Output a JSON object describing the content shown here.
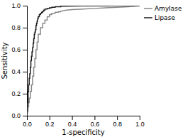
{
  "chart_data": {
    "type": "line",
    "xlabel": "1-specificity",
    "ylabel": "Sensitivity",
    "xlim": [
      0.0,
      1.0
    ],
    "ylim": [
      0.0,
      1.0
    ],
    "xticks": [
      {
        "value": 0.0,
        "label": "0.0"
      },
      0.2,
      0.4,
      0.6,
      0.8,
      {
        "value": 1.0,
        "label": "1.0"
      }
    ],
    "yticks": [
      {
        "value": 0.0,
        "label": "0.0"
      },
      0.2,
      0.4,
      0.6,
      0.8,
      {
        "value": 1.0,
        "label": "1.0"
      }
    ],
    "grid": false,
    "legend": "right",
    "series": [
      {
        "name": "Amylase",
        "color": "#888888",
        "x": [
          0.0,
          0.0,
          0.005,
          0.005,
          0.01,
          0.01,
          0.015,
          0.015,
          0.02,
          0.02,
          0.03,
          0.03,
          0.04,
          0.04,
          0.05,
          0.05,
          0.06,
          0.06,
          0.07,
          0.07,
          0.08,
          0.08,
          0.09,
          0.09,
          0.1,
          0.1,
          0.12,
          0.12,
          0.14,
          0.14,
          0.16,
          0.16,
          0.18,
          0.18,
          0.2,
          0.2,
          0.22,
          0.22,
          0.25,
          0.25,
          0.28,
          0.28,
          0.3,
          0.3,
          0.35,
          0.4,
          0.5,
          0.6,
          0.7,
          0.8,
          0.9,
          1.0
        ],
        "values": [
          0.0,
          0.02,
          0.02,
          0.04,
          0.04,
          0.08,
          0.08,
          0.12,
          0.12,
          0.16,
          0.16,
          0.22,
          0.22,
          0.28,
          0.28,
          0.36,
          0.36,
          0.44,
          0.44,
          0.52,
          0.52,
          0.6,
          0.6,
          0.67,
          0.67,
          0.74,
          0.74,
          0.8,
          0.8,
          0.84,
          0.84,
          0.87,
          0.87,
          0.9,
          0.9,
          0.92,
          0.92,
          0.93,
          0.93,
          0.94,
          0.94,
          0.945,
          0.945,
          0.95,
          0.96,
          0.965,
          0.97,
          0.975,
          0.98,
          0.985,
          0.99,
          1.0
        ]
      },
      {
        "name": "Lipase",
        "color": "#1a1a1a",
        "x": [
          0.0,
          0.0,
          0.0,
          0.005,
          0.005,
          0.01,
          0.01,
          0.01,
          0.015,
          0.015,
          0.02,
          0.02,
          0.025,
          0.025,
          0.03,
          0.03,
          0.035,
          0.035,
          0.04,
          0.04,
          0.045,
          0.045,
          0.05,
          0.05,
          0.055,
          0.055,
          0.06,
          0.06,
          0.065,
          0.065,
          0.07,
          0.07,
          0.075,
          0.075,
          0.08,
          0.08,
          0.085,
          0.085,
          0.09,
          0.09,
          0.095,
          0.095,
          0.1,
          0.1,
          0.11,
          0.11,
          0.12,
          0.12,
          0.13,
          0.13,
          0.14,
          0.14,
          0.15,
          0.15,
          0.16,
          0.16,
          0.18,
          0.18,
          0.2,
          0.2,
          0.22,
          0.22,
          0.25,
          0.25,
          0.3,
          0.3,
          0.4,
          0.5,
          0.6,
          0.7,
          0.8,
          0.9,
          1.0
        ],
        "values": [
          0.0,
          0.04,
          0.08,
          0.08,
          0.12,
          0.12,
          0.18,
          0.22,
          0.22,
          0.28,
          0.28,
          0.34,
          0.34,
          0.38,
          0.38,
          0.44,
          0.44,
          0.5,
          0.5,
          0.54,
          0.54,
          0.58,
          0.58,
          0.62,
          0.62,
          0.66,
          0.66,
          0.7,
          0.7,
          0.74,
          0.74,
          0.76,
          0.76,
          0.78,
          0.78,
          0.82,
          0.82,
          0.84,
          0.84,
          0.86,
          0.86,
          0.88,
          0.88,
          0.9,
          0.9,
          0.92,
          0.92,
          0.93,
          0.93,
          0.94,
          0.94,
          0.95,
          0.95,
          0.96,
          0.96,
          0.97,
          0.97,
          0.975,
          0.975,
          0.98,
          0.98,
          0.985,
          0.985,
          0.99,
          0.99,
          0.995,
          0.997,
          0.998,
          0.999,
          0.999,
          1.0,
          1.0,
          1.0
        ]
      }
    ]
  }
}
